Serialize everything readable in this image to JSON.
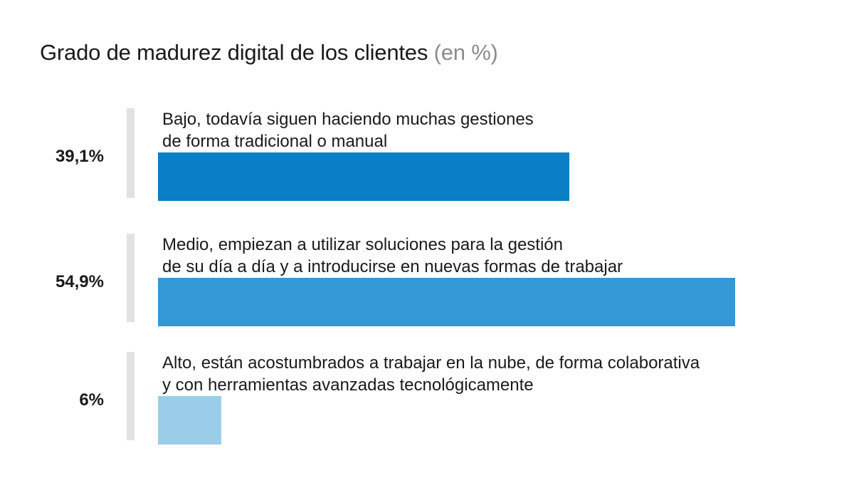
{
  "chart_data": {
    "type": "bar",
    "orientation": "horizontal",
    "title": "Grado de madurez digital de los clientes",
    "title_unit": "(en %)",
    "xlim": [
      0,
      54.9
    ],
    "categories": [
      {
        "label_line1": "Bajo, todavía siguen haciendo muchas gestiones",
        "label_line2": "de forma tradicional o manual",
        "value": 39.1,
        "value_label": "39,1%",
        "color": "#0a7fc6"
      },
      {
        "label_line1": "Medio, empiezan a utilizar soluciones para la gestión",
        "label_line2": "de su día a día y a introducirse en nuevas formas de trabajar",
        "value": 54.9,
        "value_label": "54,9%",
        "color": "#3399d6"
      },
      {
        "label_line1": "Alto, están acostumbrados a trabajar en la nube, de forma colaborativa",
        "label_line2": "y con herramientas avanzadas tecnológicamente",
        "value": 6,
        "value_label": "6%",
        "color": "#9ccde8"
      }
    ]
  }
}
